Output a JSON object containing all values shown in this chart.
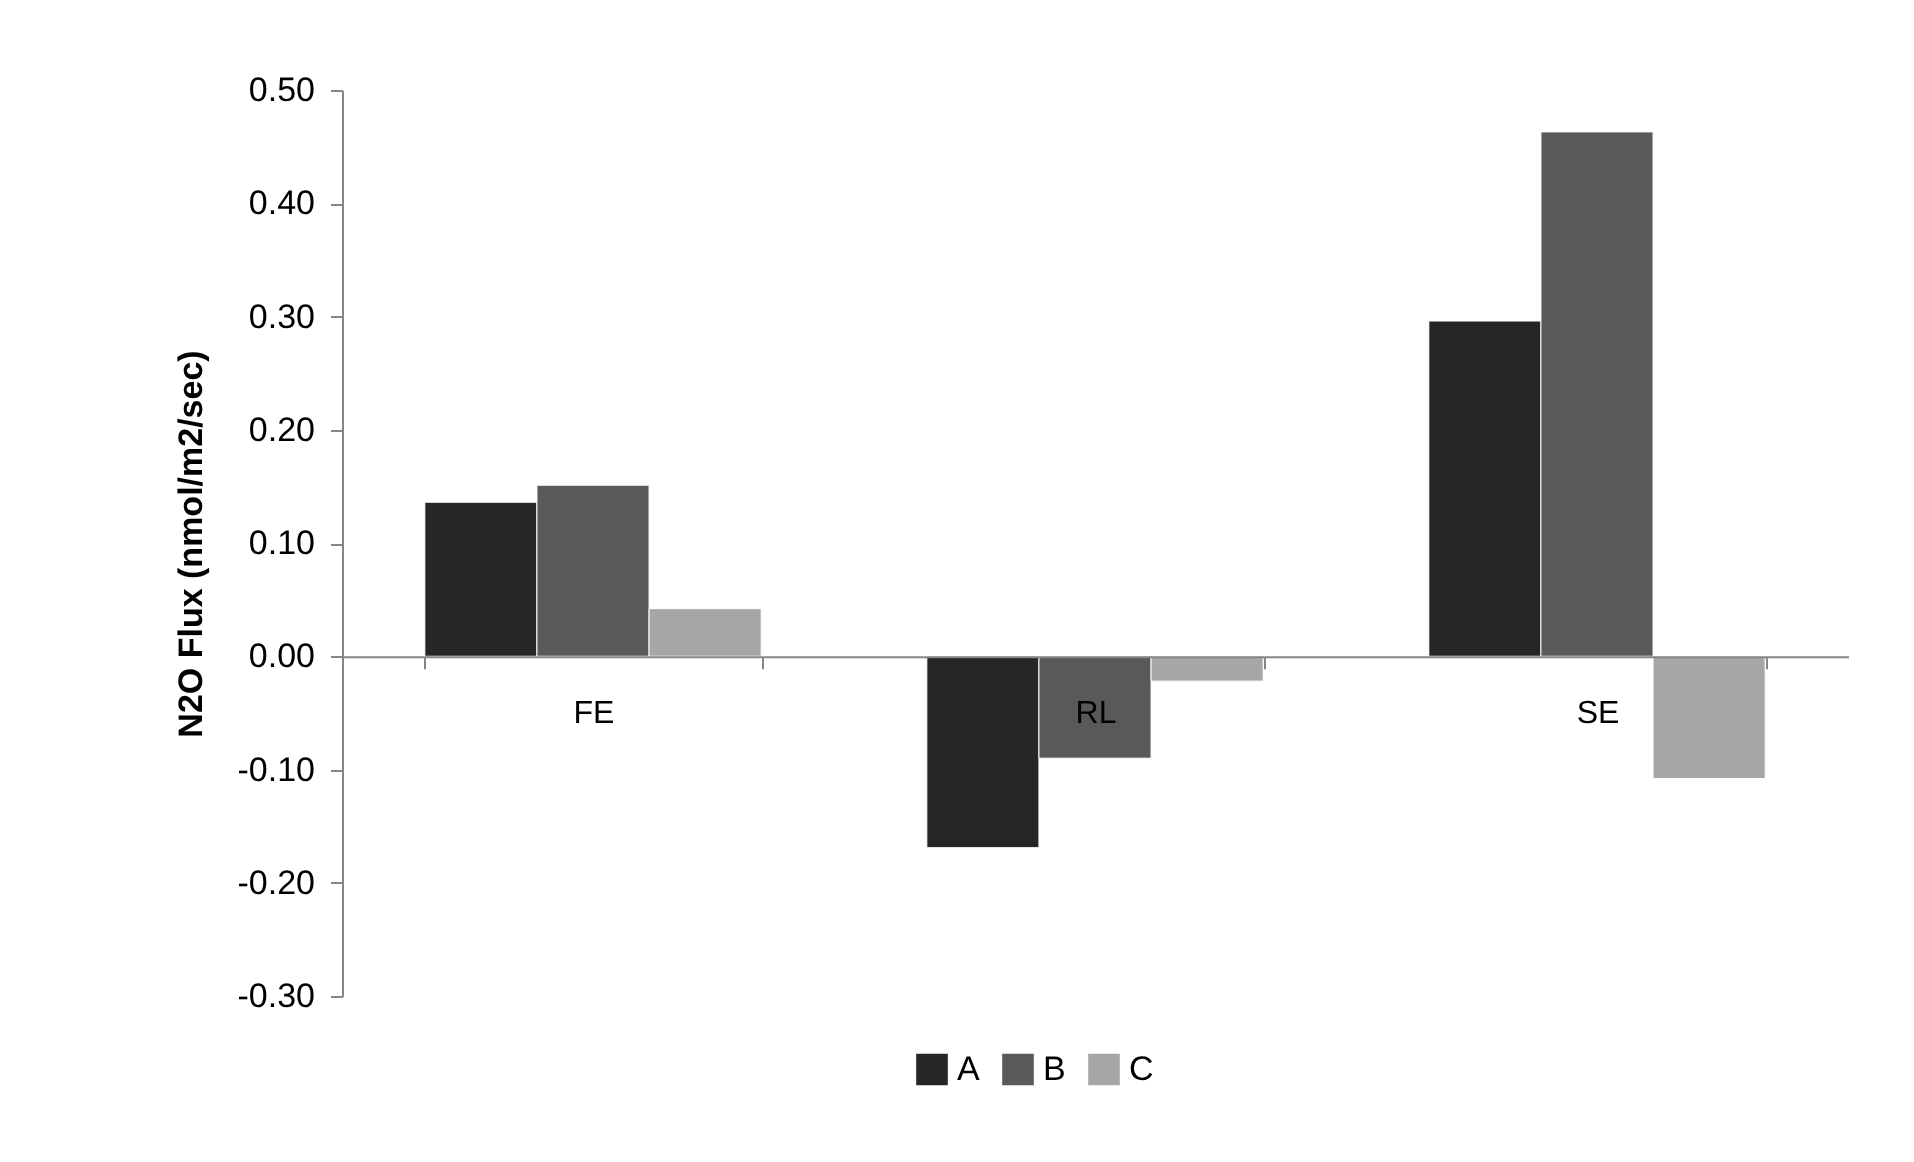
{
  "chart_data": {
    "type": "bar",
    "ylabel": "N2O Flux (nmol/m2/sec)",
    "categories": [
      "FE",
      "RL",
      "SE"
    ],
    "series": [
      {
        "name": "A",
        "color": "#262626",
        "values": [
          0.136,
          -0.169,
          0.296
        ]
      },
      {
        "name": "B",
        "color": "#595959",
        "values": [
          0.151,
          -0.09,
          0.463
        ]
      },
      {
        "name": "C",
        "color": "#a6a6a6",
        "values": [
          0.042,
          -0.022,
          -0.108
        ]
      }
    ],
    "ylim": [
      -0.3,
      0.5
    ],
    "yticks": [
      {
        "value": -0.3,
        "label": "-0.30"
      },
      {
        "value": -0.2,
        "label": "-0.20"
      },
      {
        "value": -0.1,
        "label": "-0.10"
      },
      {
        "value": 0,
        "label": "0.00"
      },
      {
        "value": 0.1,
        "label": "0.10"
      },
      {
        "value": 0.2,
        "label": "0.20"
      },
      {
        "value": 0.3,
        "label": "0.30"
      },
      {
        "value": 0.4,
        "label": "0.40"
      },
      {
        "value": 0.5,
        "label": "0.50"
      }
    ],
    "grid": false,
    "legend": "bottom"
  }
}
